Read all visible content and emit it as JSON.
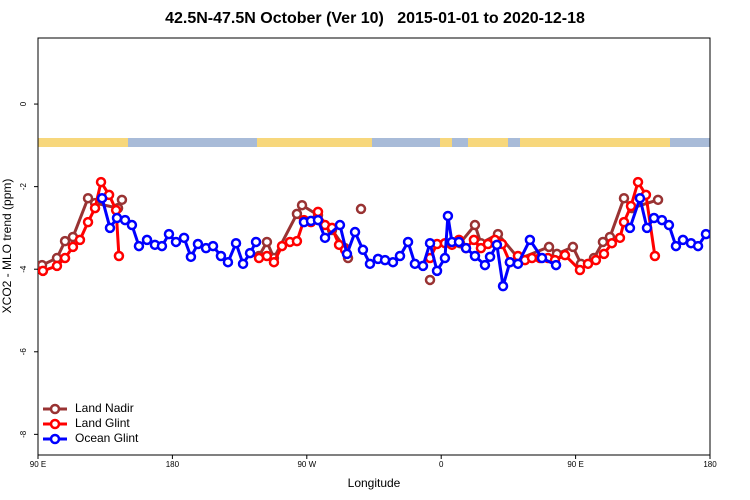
{
  "chart_data": {
    "type": "line",
    "title": "42.5N-47.5N October (Ver 10)   2015-01-01 to 2020-12-18",
    "xlabel": "Longitude",
    "ylabel": "XCO2 - MLO trend (ppm)",
    "xlim": [
      90,
      540
    ],
    "ylim": [
      -8.5,
      1.6
    ],
    "xticks": [
      {
        "value": 90,
        "label": "90 E"
      },
      {
        "value": 180,
        "label": "180"
      },
      {
        "value": 270,
        "label": "90 W"
      },
      {
        "value": 360,
        "label": "0"
      },
      {
        "value": 450,
        "label": "90 E"
      },
      {
        "value": 540,
        "label": "180"
      }
    ],
    "yticks": [
      -8,
      -6,
      -4,
      -2,
      0
    ],
    "legend": "bottom-left",
    "series": [
      {
        "name": "Land Nadir",
        "color": "#993333",
        "x": [
          92.7,
          102.7,
          108.1,
          113.4,
          123.5,
          128.2,
          143.6,
          146.2,
          null,
          238.0,
          243.3,
          248.0,
          263.4,
          266.8,
          277.5,
          286.9,
          295.6,
          297.6,
          null,
          306.3,
          null,
          352.5,
          null,
          372.6,
          382.6,
          386.6,
          398.0,
          412.1,
          432.2,
          437.5,
          448.2,
          453.6,
          462.3,
          468.3,
          473.0,
          482.4,
          487.7,
          505.2
        ],
        "values": [
          -3.9,
          -3.73,
          -3.32,
          -3.22,
          -2.28,
          -2.4,
          -2.52,
          -2.32,
          null,
          -3.68,
          -3.34,
          -3.73,
          -2.66,
          -2.45,
          -2.69,
          -3.05,
          -3.49,
          -3.73,
          null,
          -2.54,
          null,
          -4.26,
          null,
          -3.37,
          -2.93,
          -3.37,
          -3.15,
          -3.75,
          -3.46,
          -3.63,
          -3.46,
          -3.87,
          -3.73,
          -3.34,
          -3.22,
          -2.28,
          -2.52,
          -2.32
        ]
      },
      {
        "name": "Land Glint",
        "color": "#ff0000",
        "x": [
          93.3,
          102.7,
          108.1,
          113.4,
          118.1,
          123.5,
          128.2,
          132.2,
          137.6,
          142.3,
          144.2,
          null,
          238.0,
          243.3,
          248.0,
          253.4,
          258.7,
          263.4,
          268.1,
          272.8,
          277.5,
          282.2,
          286.9,
          291.6,
          295.6,
          null,
          352.5,
          357.2,
          362.5,
          367.2,
          371.9,
          376.6,
          381.9,
          386.6,
          391.3,
          396.0,
          400.7,
          406.0,
          411.4,
          416.1,
          420.8,
          426.1,
          431.5,
          436.2,
          442.9,
          452.9,
          458.3,
          463.6,
          469.0,
          474.3,
          479.7,
          482.4,
          487.1,
          491.8,
          497.1,
          503.1
        ],
        "values": [
          -4.04,
          -3.92,
          -3.73,
          -3.46,
          -3.29,
          -2.86,
          -2.52,
          -1.89,
          -2.2,
          -2.57,
          -3.68,
          null,
          -3.73,
          -3.68,
          -3.83,
          -3.44,
          -3.34,
          -3.32,
          -2.81,
          -2.86,
          -2.61,
          -2.93,
          -3.0,
          -3.41,
          -3.53,
          null,
          -3.73,
          -3.39,
          -3.37,
          -3.41,
          -3.29,
          -3.49,
          -3.29,
          -3.49,
          -3.39,
          -3.29,
          -3.39,
          -3.83,
          -3.68,
          -3.78,
          -3.73,
          -3.73,
          -3.73,
          -3.78,
          -3.66,
          -4.02,
          -3.87,
          -3.78,
          -3.63,
          -3.37,
          -3.24,
          -2.86,
          -2.47,
          -1.89,
          -2.2,
          -3.68
        ]
      },
      {
        "name": "Ocean Glint",
        "color": "#0000ff",
        "x": [
          132.9,
          138.2,
          142.9,
          148.3,
          152.9,
          157.6,
          163.0,
          168.3,
          173.0,
          177.7,
          182.4,
          187.8,
          192.4,
          197.1,
          202.5,
          207.2,
          212.5,
          217.2,
          222.6,
          227.3,
          232.0,
          236.0,
          null,
          268.1,
          272.8,
          277.5,
          282.2,
          292.2,
          296.9,
          302.3,
          307.6,
          312.3,
          317.7,
          322.4,
          327.7,
          332.4,
          337.8,
          342.4,
          347.8,
          352.5,
          357.2,
          362.5,
          364.5,
          367.2,
          371.9,
          376.6,
          382.6,
          389.3,
          392.7,
          397.3,
          401.4,
          406.0,
          411.4,
          419.4,
          427.5,
          436.9,
          null,
          486.4,
          493.1,
          497.8,
          502.5,
          507.8,
          512.5,
          517.2,
          521.9,
          527.3,
          532.0,
          537.3
        ],
        "values": [
          -2.28,
          -3.0,
          -2.76,
          -2.81,
          -2.93,
          -3.44,
          -3.29,
          -3.41,
          -3.44,
          -3.15,
          -3.34,
          -3.24,
          -3.7,
          -3.39,
          -3.49,
          -3.44,
          -3.68,
          -3.83,
          -3.37,
          -3.87,
          -3.61,
          -3.34,
          null,
          -2.86,
          -2.83,
          -2.81,
          -3.24,
          -2.93,
          -3.63,
          -3.1,
          -3.53,
          -3.87,
          -3.75,
          -3.78,
          -3.83,
          -3.68,
          -3.34,
          -3.87,
          -3.92,
          -3.37,
          -4.04,
          -3.73,
          -2.71,
          -3.34,
          -3.34,
          -3.49,
          -3.68,
          -3.9,
          -3.7,
          -3.41,
          -4.41,
          -3.83,
          -3.87,
          -3.29,
          -3.73,
          -3.9,
          null,
          -3.0,
          -2.28,
          -3.0,
          -2.76,
          -2.81,
          -2.93,
          -3.44,
          -3.29,
          -3.37,
          -3.44,
          -3.15
        ]
      }
    ]
  }
}
